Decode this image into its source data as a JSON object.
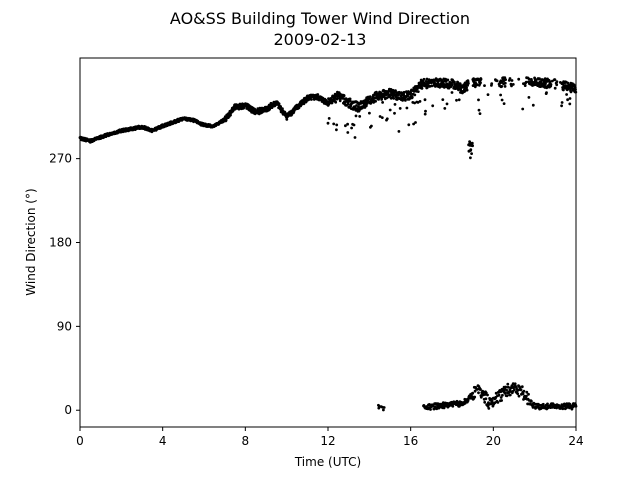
{
  "chart_data": {
    "type": "scatter",
    "title": "AO&SS Building Tower Wind Direction",
    "subtitle": "2009-02-13",
    "xlabel": "Time (UTC)",
    "ylabel": "Wind Direction (°)",
    "xlim": [
      0,
      24
    ],
    "ylim": [
      -18,
      378
    ],
    "x_ticks": [
      0,
      4,
      8,
      12,
      16,
      20,
      24
    ],
    "y_ticks": [
      0,
      90,
      180,
      270
    ],
    "grid": false,
    "legend": "none",
    "marker_color": "#000000",
    "series": [
      {
        "upper_band_trend": [
          {
            "x": 0.0,
            "y": 292
          },
          {
            "x": 0.5,
            "y": 289
          },
          {
            "x": 1.0,
            "y": 293
          },
          {
            "x": 1.5,
            "y": 297
          },
          {
            "x": 2.0,
            "y": 300
          },
          {
            "x": 2.5,
            "y": 302
          },
          {
            "x": 3.0,
            "y": 304
          },
          {
            "x": 3.5,
            "y": 300
          },
          {
            "x": 4.0,
            "y": 305
          },
          {
            "x": 4.5,
            "y": 309
          },
          {
            "x": 5.0,
            "y": 313
          },
          {
            "x": 5.5,
            "y": 311
          },
          {
            "x": 6.0,
            "y": 306
          },
          {
            "x": 6.5,
            "y": 305
          },
          {
            "x": 7.0,
            "y": 312
          },
          {
            "x": 7.5,
            "y": 325
          },
          {
            "x": 8.0,
            "y": 327
          },
          {
            "x": 8.5,
            "y": 320
          },
          {
            "x": 9.0,
            "y": 323
          },
          {
            "x": 9.5,
            "y": 330
          },
          {
            "x": 10.0,
            "y": 315
          },
          {
            "x": 10.5,
            "y": 325
          },
          {
            "x": 11.0,
            "y": 335
          },
          {
            "x": 11.5,
            "y": 336
          },
          {
            "x": 12.0,
            "y": 330
          },
          {
            "x": 12.5,
            "y": 337
          },
          {
            "x": 13.0,
            "y": 330
          },
          {
            "x": 13.5,
            "y": 325
          },
          {
            "x": 14.0,
            "y": 333
          },
          {
            "x": 14.5,
            "y": 338
          },
          {
            "x": 15.0,
            "y": 340
          },
          {
            "x": 15.5,
            "y": 336
          },
          {
            "x": 16.0,
            "y": 338
          },
          {
            "x": 16.5,
            "y": 350
          },
          {
            "x": 17.0,
            "y": 351
          },
          {
            "x": 17.5,
            "y": 351
          },
          {
            "x": 18.0,
            "y": 350
          },
          {
            "x": 18.5,
            "y": 345
          },
          {
            "x": 19.0,
            "y": 352
          },
          {
            "x": 20.0,
            "y": 352
          },
          {
            "x": 22.0,
            "y": 352
          },
          {
            "x": 23.0,
            "y": 350
          },
          {
            "x": 24.0,
            "y": 345
          }
        ],
        "lower_band_trend": [
          {
            "x": 14.5,
            "y": 2
          },
          {
            "x": 16.8,
            "y": 2
          },
          {
            "x": 17.5,
            "y": 4
          },
          {
            "x": 18.5,
            "y": 6
          },
          {
            "x": 19.3,
            "y": 20
          },
          {
            "x": 19.8,
            "y": 5
          },
          {
            "x": 20.5,
            "y": 16
          },
          {
            "x": 21.0,
            "y": 22
          },
          {
            "x": 21.5,
            "y": 14
          },
          {
            "x": 22.0,
            "y": 3
          },
          {
            "x": 23.0,
            "y": 3
          },
          {
            "x": 24.0,
            "y": 3
          }
        ]
      }
    ]
  }
}
